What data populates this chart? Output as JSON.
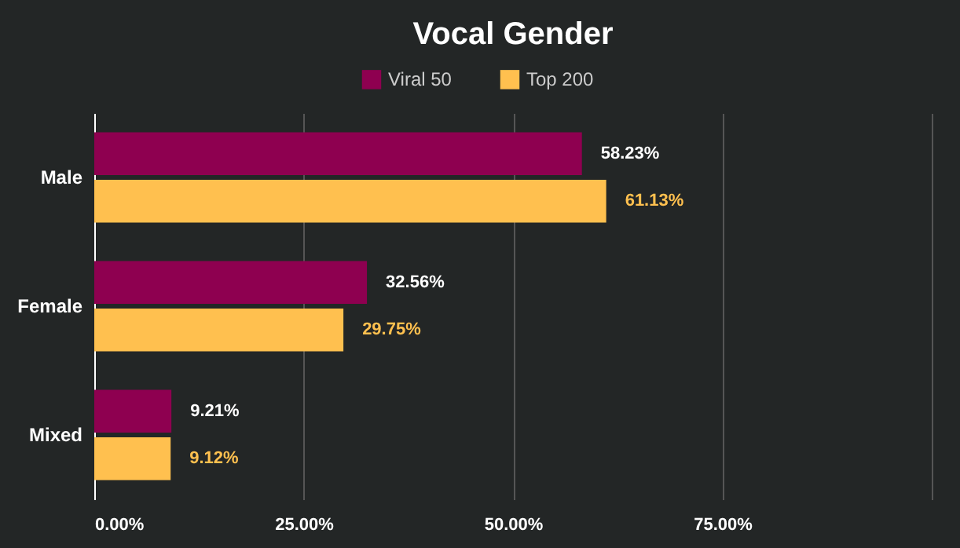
{
  "chart_data": {
    "type": "bar",
    "orientation": "horizontal",
    "title": "Vocal Gender",
    "categories": [
      "Male",
      "Female",
      "Mixed"
    ],
    "series": [
      {
        "name": "Viral 50",
        "color": "#8e0050",
        "values": [
          58.23,
          32.56,
          9.21
        ],
        "value_labels": [
          "58.23%",
          "32.56%",
          "9.21%"
        ]
      },
      {
        "name": "Top 200",
        "color": "#ffc04f",
        "values": [
          61.13,
          29.75,
          9.12
        ],
        "value_labels": [
          "61.13%",
          "29.75%",
          "9.12%"
        ]
      }
    ],
    "xlim": [
      0,
      100
    ],
    "xticks": [
      {
        "value": 0,
        "label": "0.00%"
      },
      {
        "value": 25,
        "label": "25.00%"
      },
      {
        "value": 50,
        "label": "50.00%"
      },
      {
        "value": 75,
        "label": "75.00%"
      },
      {
        "value": 100,
        "label": null
      }
    ],
    "grid": "x",
    "legend": "top"
  }
}
